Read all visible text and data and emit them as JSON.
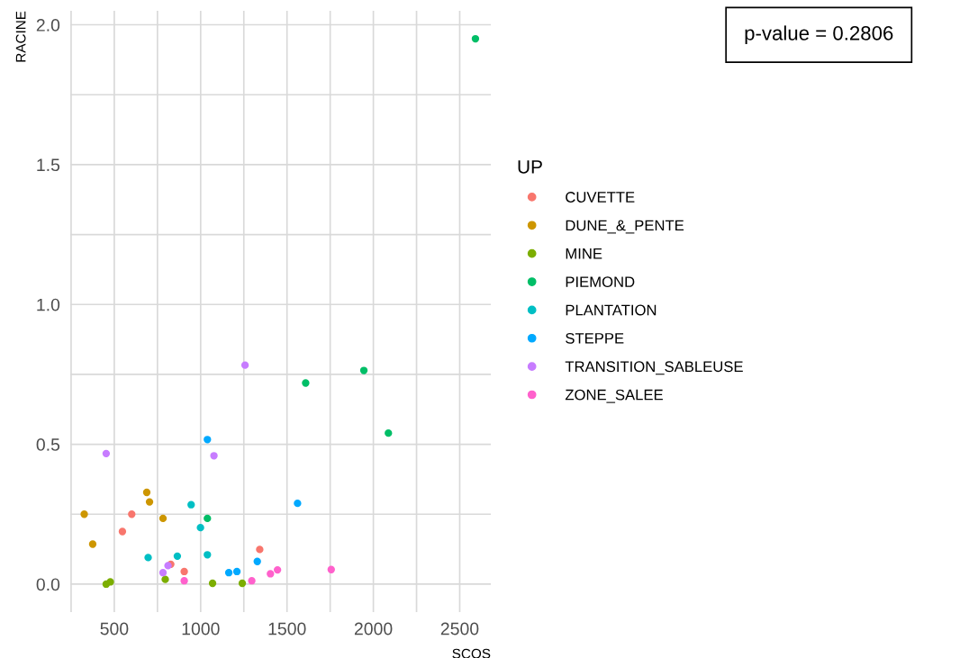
{
  "chart_data": {
    "type": "scatter",
    "xlabel": "SCOS",
    "ylabel": "RACINE",
    "legend_title": "UP",
    "annotations": [
      "p-value = 0.2806"
    ],
    "xlim": [
      245,
      2680
    ],
    "ylim": [
      -0.1,
      2.05
    ],
    "xticks": [
      {
        "value": 250,
        "label": null
      },
      500,
      {
        "value": 750,
        "label": null
      },
      1000,
      {
        "value": 1250,
        "label": null
      },
      1500,
      {
        "value": 1750,
        "label": null
      },
      2000,
      {
        "value": 2250,
        "label": null
      },
      2500
    ],
    "yticks": [
      {
        "value": 0,
        "label": "0.0"
      },
      {
        "value": 0.25,
        "label": null
      },
      0.5,
      {
        "value": 0.75,
        "label": null
      },
      {
        "value": 1,
        "label": "1.0"
      },
      {
        "value": 1.25,
        "label": null
      },
      1.5,
      {
        "value": 1.75,
        "label": null
      },
      {
        "value": 2,
        "label": "2.0"
      }
    ],
    "grid": true,
    "legend": "right",
    "marker": "circle",
    "series": [
      {
        "name": "CUVETTE",
        "color": "#f8766d",
        "x": [
          601,
          547,
          1342,
          827,
          905
        ],
        "values": [
          0.25,
          0.188,
          0.124,
          0.071,
          0.045
        ]
      },
      {
        "name": "DUNE_&_PENTE",
        "color": "#cd9600",
        "x": [
          688,
          704,
          326,
          782,
          375
        ],
        "values": [
          0.328,
          0.294,
          0.25,
          0.235,
          0.143
        ]
      },
      {
        "name": "MINE",
        "color": "#7cae00",
        "x": [
          795,
          453,
          477,
          1069,
          1241
        ],
        "values": [
          0.017,
          0.0,
          0.008,
          0.003,
          0.003
        ]
      },
      {
        "name": "PIEMOND",
        "color": "#00be67",
        "x": [
          1039,
          1608,
          2591,
          1945,
          2087
        ],
        "values": [
          0.235,
          0.719,
          1.95,
          0.764,
          0.54
        ]
      },
      {
        "name": "PLANTATION",
        "color": "#00bfc4",
        "x": [
          945,
          999,
          696,
          865,
          1039
        ],
        "values": [
          0.284,
          0.202,
          0.095,
          0.1,
          0.105
        ]
      },
      {
        "name": "STEPPE",
        "color": "#00a9ff",
        "x": [
          1039,
          1328,
          1163,
          1210,
          1561
        ],
        "values": [
          0.517,
          0.081,
          0.041,
          0.045,
          0.289
        ]
      },
      {
        "name": "TRANSITION_SABLEUSE",
        "color": "#c77cff",
        "x": [
          453,
          1077,
          811,
          782,
          1257
        ],
        "values": [
          0.467,
          0.459,
          0.066,
          0.041,
          0.783
        ]
      },
      {
        "name": "ZONE_SALEE",
        "color": "#ff61cc",
        "x": [
          905,
          1296,
          1404,
          1445,
          1756
        ],
        "values": [
          0.012,
          0.012,
          0.037,
          0.051,
          0.052
        ]
      }
    ]
  }
}
